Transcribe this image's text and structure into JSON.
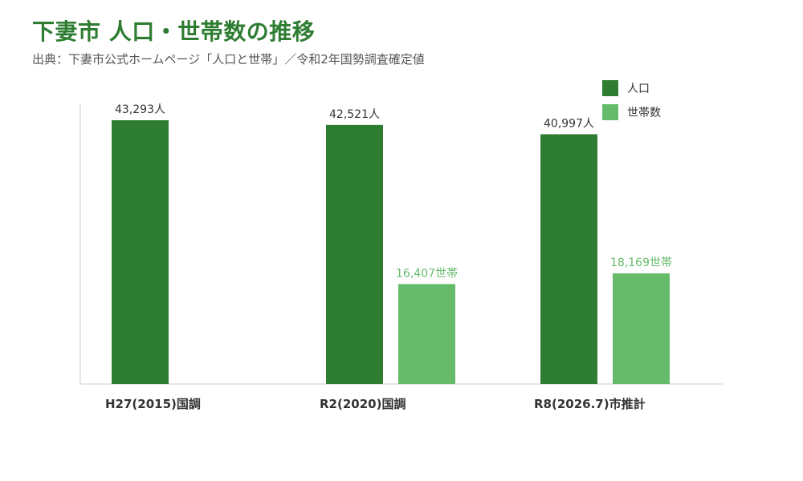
{
  "header": {
    "title": "下妻市 人口・世帯数の推移",
    "subtitle": "出典：下妻市公式ホームページ「人口と世帯」／令和2年国勢調査確定値"
  },
  "colors": {
    "population": "#2e7d32",
    "households": "#66bb6a",
    "title": "#2e7d32",
    "axis": "#cccccc"
  },
  "chart_data": {
    "type": "bar",
    "title": "下妻市 人口・世帯数の推移",
    "xlabel": "",
    "ylabel": "",
    "ylim": [
      0,
      45000
    ],
    "grid": false,
    "legend_position": "top-right",
    "categories": [
      "H27(2015)国調",
      "R2(2020)国調",
      "R8(2026.7)市推計"
    ],
    "series": [
      {
        "name": "人口",
        "values": [
          43293,
          42521,
          40997
        ],
        "labels": [
          "43,293人",
          "42,521人",
          "40,997人"
        ]
      },
      {
        "name": "世帯数",
        "values": [
          null,
          16407,
          18169
        ],
        "labels": [
          "",
          "16,407世帯",
          "18,169世帯"
        ]
      }
    ]
  }
}
